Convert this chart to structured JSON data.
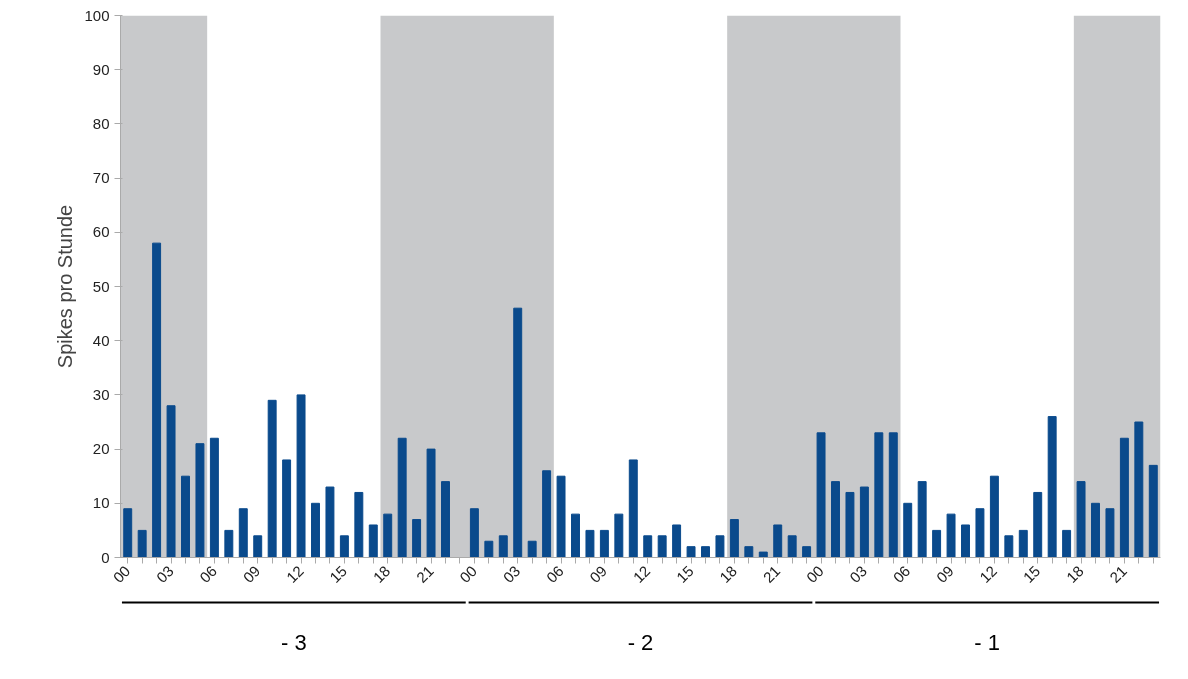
{
  "chart_data": {
    "type": "bar",
    "ylabel": "Spikes pro Stunde",
    "x": [
      0,
      1,
      2,
      3,
      4,
      5,
      6,
      7,
      8,
      9,
      10,
      11,
      12,
      13,
      14,
      15,
      16,
      17,
      18,
      19,
      20,
      21,
      22,
      23,
      24,
      25,
      26,
      27,
      28,
      29,
      30,
      31,
      32,
      33,
      34,
      35,
      36,
      37,
      38,
      39,
      40,
      41,
      42,
      43,
      44,
      45,
      46,
      47,
      48,
      49,
      50,
      51,
      52,
      53,
      54,
      55,
      56,
      57,
      58,
      59,
      60,
      61,
      62,
      63,
      64,
      65,
      66,
      67,
      68,
      69,
      70,
      71
    ],
    "values": [
      9,
      5,
      58,
      28,
      15,
      21,
      22,
      5,
      9,
      4,
      29,
      18,
      30,
      10,
      13,
      4,
      12,
      6,
      8,
      22,
      7,
      20,
      14,
      0,
      9,
      3,
      4,
      46,
      3,
      16,
      15,
      8,
      5,
      5,
      8,
      18,
      4,
      4,
      6,
      2,
      2,
      4,
      7,
      2,
      1,
      6,
      4,
      2,
      23,
      14,
      12,
      13,
      23,
      23,
      10,
      14,
      5,
      8,
      6,
      9,
      15,
      4,
      5,
      12,
      26,
      5,
      14,
      10,
      9,
      22,
      25,
      17
    ],
    "color": "#0a4a8c",
    "xlim": [
      -0.5,
      71.5
    ],
    "xticks": [
      {
        "value": 0,
        "label": "00"
      },
      {
        "value": 1,
        "label": null
      },
      {
        "value": 2,
        "label": null
      },
      {
        "value": 3,
        "label": "03"
      },
      {
        "value": 4,
        "label": null
      },
      {
        "value": 5,
        "label": null
      },
      {
        "value": 6,
        "label": "06"
      },
      {
        "value": 7,
        "label": null
      },
      {
        "value": 8,
        "label": null
      },
      {
        "value": 9,
        "label": "09"
      },
      {
        "value": 10,
        "label": null
      },
      {
        "value": 11,
        "label": null
      },
      {
        "value": 12,
        "label": "12"
      },
      {
        "value": 13,
        "label": null
      },
      {
        "value": 14,
        "label": null
      },
      {
        "value": 15,
        "label": "15"
      },
      {
        "value": 16,
        "label": null
      },
      {
        "value": 17,
        "label": null
      },
      {
        "value": 18,
        "label": "18"
      },
      {
        "value": 19,
        "label": null
      },
      {
        "value": 20,
        "label": null
      },
      {
        "value": 21,
        "label": "21"
      },
      {
        "value": 22,
        "label": null
      },
      {
        "value": 23,
        "label": null
      },
      {
        "value": 24,
        "label": "00"
      },
      {
        "value": 25,
        "label": null
      },
      {
        "value": 26,
        "label": null
      },
      {
        "value": 27,
        "label": "03"
      },
      {
        "value": 28,
        "label": null
      },
      {
        "value": 29,
        "label": null
      },
      {
        "value": 30,
        "label": "06"
      },
      {
        "value": 31,
        "label": null
      },
      {
        "value": 32,
        "label": null
      },
      {
        "value": 33,
        "label": "09"
      },
      {
        "value": 34,
        "label": null
      },
      {
        "value": 35,
        "label": null
      },
      {
        "value": 36,
        "label": "12"
      },
      {
        "value": 37,
        "label": null
      },
      {
        "value": 38,
        "label": null
      },
      {
        "value": 39,
        "label": "15"
      },
      {
        "value": 40,
        "label": null
      },
      {
        "value": 41,
        "label": null
      },
      {
        "value": 42,
        "label": "18"
      },
      {
        "value": 43,
        "label": null
      },
      {
        "value": 44,
        "label": null
      },
      {
        "value": 45,
        "label": "21"
      },
      {
        "value": 46,
        "label": null
      },
      {
        "value": 47,
        "label": null
      },
      {
        "value": 48,
        "label": "00"
      },
      {
        "value": 49,
        "label": null
      },
      {
        "value": 50,
        "label": null
      },
      {
        "value": 51,
        "label": "03"
      },
      {
        "value": 52,
        "label": null
      },
      {
        "value": 53,
        "label": null
      },
      {
        "value": 54,
        "label": "06"
      },
      {
        "value": 55,
        "label": null
      },
      {
        "value": 56,
        "label": null
      },
      {
        "value": 57,
        "label": "09"
      },
      {
        "value": 58,
        "label": null
      },
      {
        "value": 59,
        "label": null
      },
      {
        "value": 60,
        "label": "12"
      },
      {
        "value": 61,
        "label": null
      },
      {
        "value": 62,
        "label": null
      },
      {
        "value": 63,
        "label": "15"
      },
      {
        "value": 64,
        "label": null
      },
      {
        "value": 65,
        "label": null
      },
      {
        "value": 66,
        "label": "18"
      },
      {
        "value": 67,
        "label": null
      },
      {
        "value": 68,
        "label": null
      },
      {
        "value": 69,
        "label": "21"
      },
      {
        "value": 70,
        "label": null
      },
      {
        "value": 71,
        "label": null
      }
    ],
    "ylim": [
      0,
      100
    ],
    "yticks": [
      0,
      10,
      20,
      30,
      40,
      50,
      60,
      70,
      80,
      90,
      100
    ],
    "bands": [
      {
        "axis": "x",
        "from": -0.5,
        "to": 5.5,
        "color": "#c8c9cb"
      },
      {
        "axis": "x",
        "from": 17.5,
        "to": 29.5,
        "color": "#c8c9cb"
      },
      {
        "axis": "x",
        "from": 41.5,
        "to": 53.5,
        "color": "#c8c9cb"
      },
      {
        "axis": "x",
        "from": 65.5,
        "to": 71.5,
        "color": "#c8c9cb"
      }
    ],
    "annotations": [
      "- 3",
      "- 2",
      "- 1"
    ],
    "grid": false
  }
}
